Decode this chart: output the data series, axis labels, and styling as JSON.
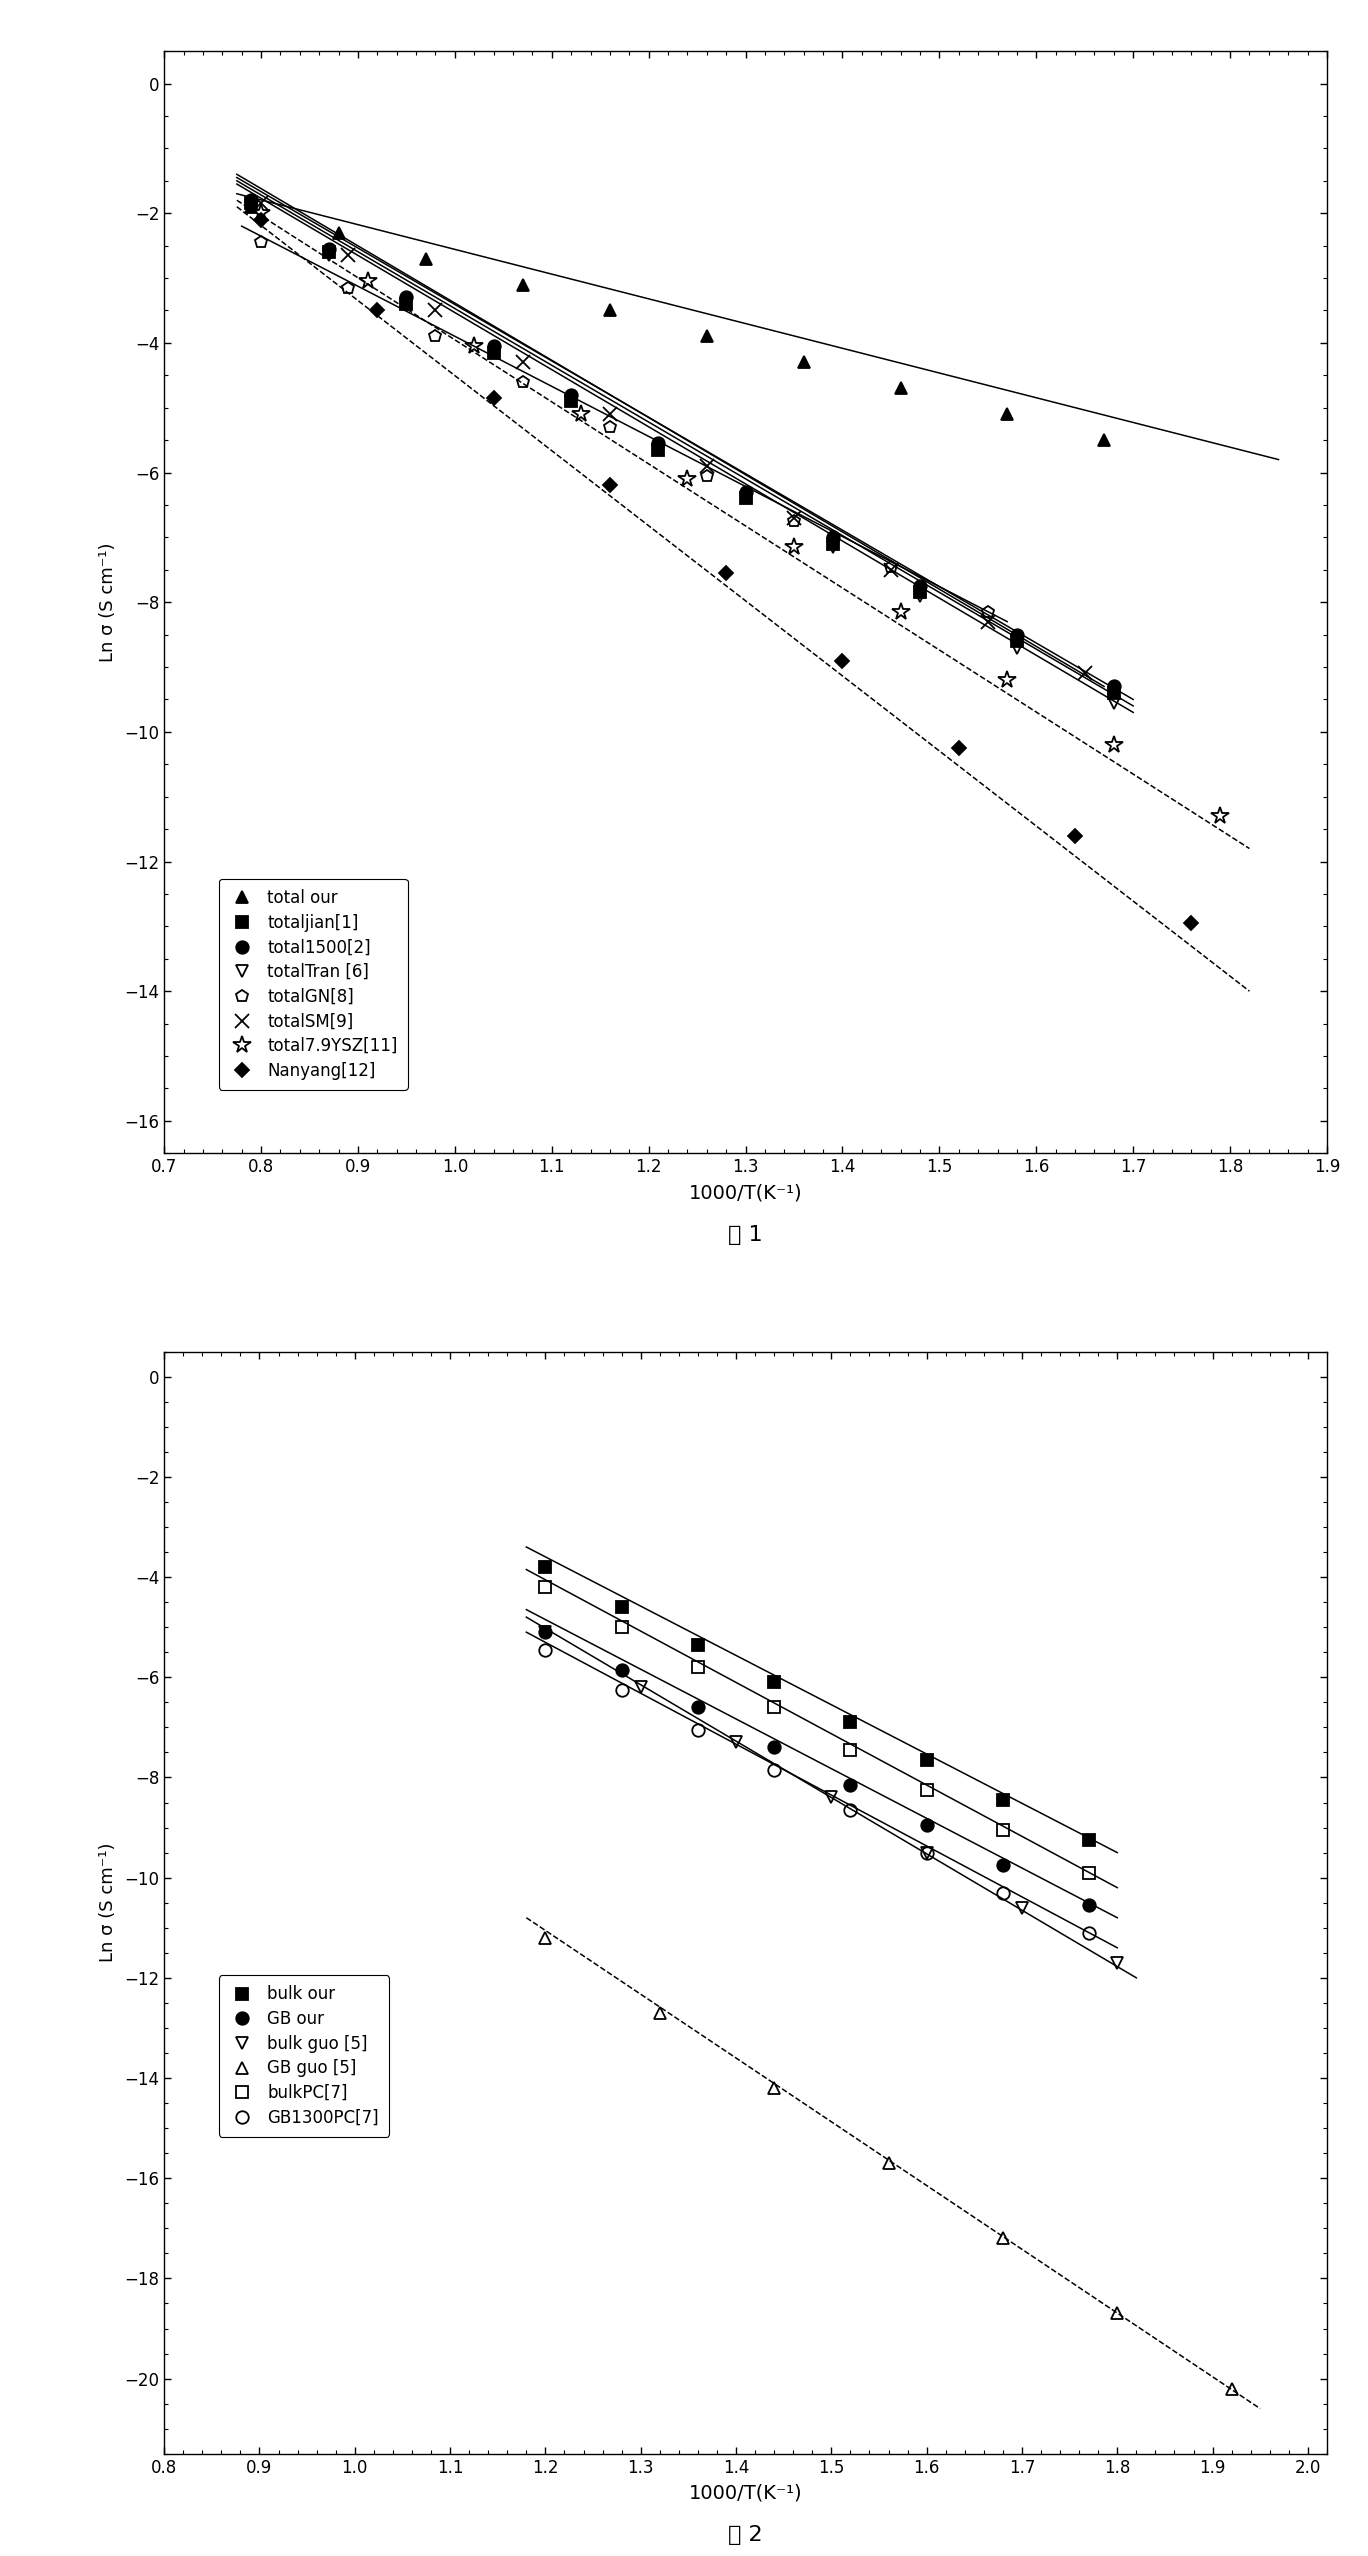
{
  "fig1": {
    "xlabel": "1000/T(K⁻¹)",
    "ylabel": "Ln σ (S cm⁻¹)",
    "xlim": [
      0.75,
      1.9
    ],
    "ylim": [
      -16.5,
      0.5
    ],
    "xticks": [
      0.7,
      0.8,
      0.9,
      1.0,
      1.1,
      1.2,
      1.3,
      1.4,
      1.5,
      1.6,
      1.7,
      1.8,
      1.9
    ],
    "yticks": [
      0,
      -2,
      -4,
      -6,
      -8,
      -10,
      -12,
      -14,
      -16
    ],
    "series": [
      {
        "label": "total our",
        "marker": "^",
        "fillstyle": "full",
        "x": [
          0.79,
          0.88,
          0.97,
          1.07,
          1.16,
          1.26,
          1.36,
          1.46,
          1.57,
          1.67
        ],
        "y": [
          -1.9,
          -2.3,
          -2.7,
          -3.1,
          -3.5,
          -3.9,
          -4.3,
          -4.7,
          -5.1,
          -5.5
        ],
        "line_x": [
          0.775,
          1.85
        ],
        "line_y": [
          -1.7,
          -5.8
        ],
        "linestyle": "-"
      },
      {
        "label": "totaljian[1]",
        "marker": "s",
        "fillstyle": "full",
        "x": [
          0.79,
          0.87,
          0.95,
          1.04,
          1.12,
          1.21,
          1.3,
          1.39,
          1.48,
          1.58,
          1.68
        ],
        "y": [
          -1.85,
          -2.6,
          -3.4,
          -4.15,
          -4.9,
          -5.65,
          -6.4,
          -7.1,
          -7.85,
          -8.6,
          -9.4
        ],
        "line_x": [
          0.775,
          1.7
        ],
        "line_y": [
          -1.5,
          -9.6
        ],
        "linestyle": "-"
      },
      {
        "label": "total1500[2]",
        "marker": "o",
        "fillstyle": "full",
        "x": [
          0.79,
          0.87,
          0.95,
          1.04,
          1.12,
          1.21,
          1.3,
          1.39,
          1.48,
          1.58,
          1.68
        ],
        "y": [
          -1.8,
          -2.55,
          -3.3,
          -4.05,
          -4.8,
          -5.55,
          -6.3,
          -7.0,
          -7.75,
          -8.5,
          -9.3
        ],
        "line_x": [
          0.775,
          1.7
        ],
        "line_y": [
          -1.45,
          -9.5
        ],
        "linestyle": "-"
      },
      {
        "label": "totalTran [6]",
        "marker": "v",
        "fillstyle": "none",
        "x": [
          0.79,
          0.87,
          0.95,
          1.04,
          1.12,
          1.21,
          1.3,
          1.39,
          1.48,
          1.58,
          1.68
        ],
        "y": [
          -1.9,
          -2.65,
          -3.4,
          -4.15,
          -4.9,
          -5.65,
          -6.4,
          -7.15,
          -7.9,
          -8.7,
          -9.55
        ],
        "line_x": [
          0.775,
          1.7
        ],
        "line_y": [
          -1.55,
          -9.7
        ],
        "linestyle": "-"
      },
      {
        "label": "totalGN[8]",
        "marker": "p",
        "fillstyle": "none",
        "x": [
          0.8,
          0.89,
          0.98,
          1.07,
          1.16,
          1.26,
          1.35,
          1.45,
          1.55
        ],
        "y": [
          -2.45,
          -3.15,
          -3.9,
          -4.6,
          -5.3,
          -6.05,
          -6.75,
          -7.45,
          -8.15
        ],
        "line_x": [
          0.78,
          1.57
        ],
        "line_y": [
          -2.2,
          -8.3
        ],
        "linestyle": "-"
      },
      {
        "label": "totalSM[9]",
        "marker": "x",
        "fillstyle": "full",
        "x": [
          0.8,
          0.89,
          0.98,
          1.07,
          1.16,
          1.26,
          1.35,
          1.45,
          1.55,
          1.65
        ],
        "y": [
          -1.85,
          -2.65,
          -3.5,
          -4.3,
          -5.1,
          -5.9,
          -6.7,
          -7.5,
          -8.3,
          -9.1
        ],
        "line_x": [
          0.775,
          1.67
        ],
        "line_y": [
          -1.4,
          -9.3
        ],
        "linestyle": "-"
      },
      {
        "label": "total7.9YSZ[11]",
        "marker": "*",
        "fillstyle": "none",
        "x": [
          0.8,
          0.91,
          1.02,
          1.13,
          1.24,
          1.35,
          1.46,
          1.57,
          1.68,
          1.79
        ],
        "y": [
          -2.0,
          -3.05,
          -4.05,
          -5.1,
          -6.1,
          -7.15,
          -8.15,
          -9.2,
          -10.2,
          -11.3
        ],
        "line_x": [
          0.775,
          1.82
        ],
        "line_y": [
          -1.8,
          -11.8
        ],
        "linestyle": "--"
      },
      {
        "label": "Nanyang[12]",
        "marker": "D",
        "fillstyle": "full",
        "x": [
          0.8,
          0.92,
          1.04,
          1.16,
          1.28,
          1.4,
          1.52,
          1.64,
          1.76
        ],
        "y": [
          -2.1,
          -3.5,
          -4.85,
          -6.2,
          -7.55,
          -8.9,
          -10.25,
          -11.6,
          -12.95
        ],
        "line_x": [
          0.775,
          1.82
        ],
        "line_y": [
          -1.9,
          -14.0
        ],
        "linestyle": "--"
      }
    ],
    "caption": "图 1"
  },
  "fig2": {
    "xlabel": "1000/T(K⁻¹)",
    "ylabel": "Ln σ (S cm⁻¹)",
    "xlim": [
      0.85,
      2.02
    ],
    "ylim": [
      -21.5,
      0.5
    ],
    "xticks": [
      0.8,
      0.9,
      1.0,
      1.1,
      1.2,
      1.3,
      1.4,
      1.5,
      1.6,
      1.7,
      1.8,
      1.9,
      2.0
    ],
    "yticks": [
      0,
      -2,
      -4,
      -6,
      -8,
      -10,
      -12,
      -14,
      -16,
      -18,
      -20
    ],
    "series": [
      {
        "label": "bulk our",
        "marker": "s",
        "fillstyle": "full",
        "x": [
          1.2,
          1.28,
          1.36,
          1.44,
          1.52,
          1.6,
          1.68,
          1.77
        ],
        "y": [
          -3.8,
          -4.6,
          -5.35,
          -6.1,
          -6.9,
          -7.65,
          -8.45,
          -9.25
        ],
        "line_x": [
          1.18,
          1.8
        ],
        "line_y": [
          -3.4,
          -9.5
        ],
        "linestyle": "-"
      },
      {
        "label": "GB our",
        "marker": "o",
        "fillstyle": "full",
        "x": [
          1.2,
          1.28,
          1.36,
          1.44,
          1.52,
          1.6,
          1.68,
          1.77
        ],
        "y": [
          -5.1,
          -5.85,
          -6.6,
          -7.4,
          -8.15,
          -8.95,
          -9.75,
          -10.55
        ],
        "line_x": [
          1.18,
          1.8
        ],
        "line_y": [
          -4.65,
          -10.8
        ],
        "linestyle": "-"
      },
      {
        "label": "bulk guo [5]",
        "marker": "v",
        "fillstyle": "none",
        "x": [
          1.2,
          1.3,
          1.4,
          1.5,
          1.6,
          1.7,
          1.8
        ],
        "y": [
          -5.1,
          -6.2,
          -7.3,
          -8.4,
          -9.5,
          -10.6,
          -11.7
        ],
        "line_x": [
          1.18,
          1.82
        ],
        "line_y": [
          -4.8,
          -12.0
        ],
        "linestyle": "-"
      },
      {
        "label": "GB guo [5]",
        "marker": "^",
        "fillstyle": "none",
        "x": [
          1.2,
          1.32,
          1.44,
          1.56,
          1.68,
          1.8,
          1.92
        ],
        "y": [
          -11.2,
          -12.7,
          -14.2,
          -15.7,
          -17.2,
          -18.7,
          -20.2
        ],
        "line_x": [
          1.18,
          1.95
        ],
        "line_y": [
          -10.8,
          -20.6
        ],
        "linestyle": "--"
      },
      {
        "label": "bulkPC[7]",
        "marker": "s",
        "fillstyle": "none",
        "x": [
          1.2,
          1.28,
          1.36,
          1.44,
          1.52,
          1.6,
          1.68,
          1.77
        ],
        "y": [
          -4.2,
          -5.0,
          -5.8,
          -6.6,
          -7.45,
          -8.25,
          -9.05,
          -9.9
        ],
        "line_x": [
          1.18,
          1.8
        ],
        "line_y": [
          -3.85,
          -10.2
        ],
        "linestyle": "-"
      },
      {
        "label": "GB1300PC[7]",
        "marker": "o",
        "fillstyle": "none",
        "x": [
          1.2,
          1.28,
          1.36,
          1.44,
          1.52,
          1.6,
          1.68,
          1.77
        ],
        "y": [
          -5.45,
          -6.25,
          -7.05,
          -7.85,
          -8.65,
          -9.5,
          -10.3,
          -11.1
        ],
        "line_x": [
          1.18,
          1.8
        ],
        "line_y": [
          -5.1,
          -11.4
        ],
        "linestyle": "-"
      }
    ],
    "caption": "图 2"
  }
}
